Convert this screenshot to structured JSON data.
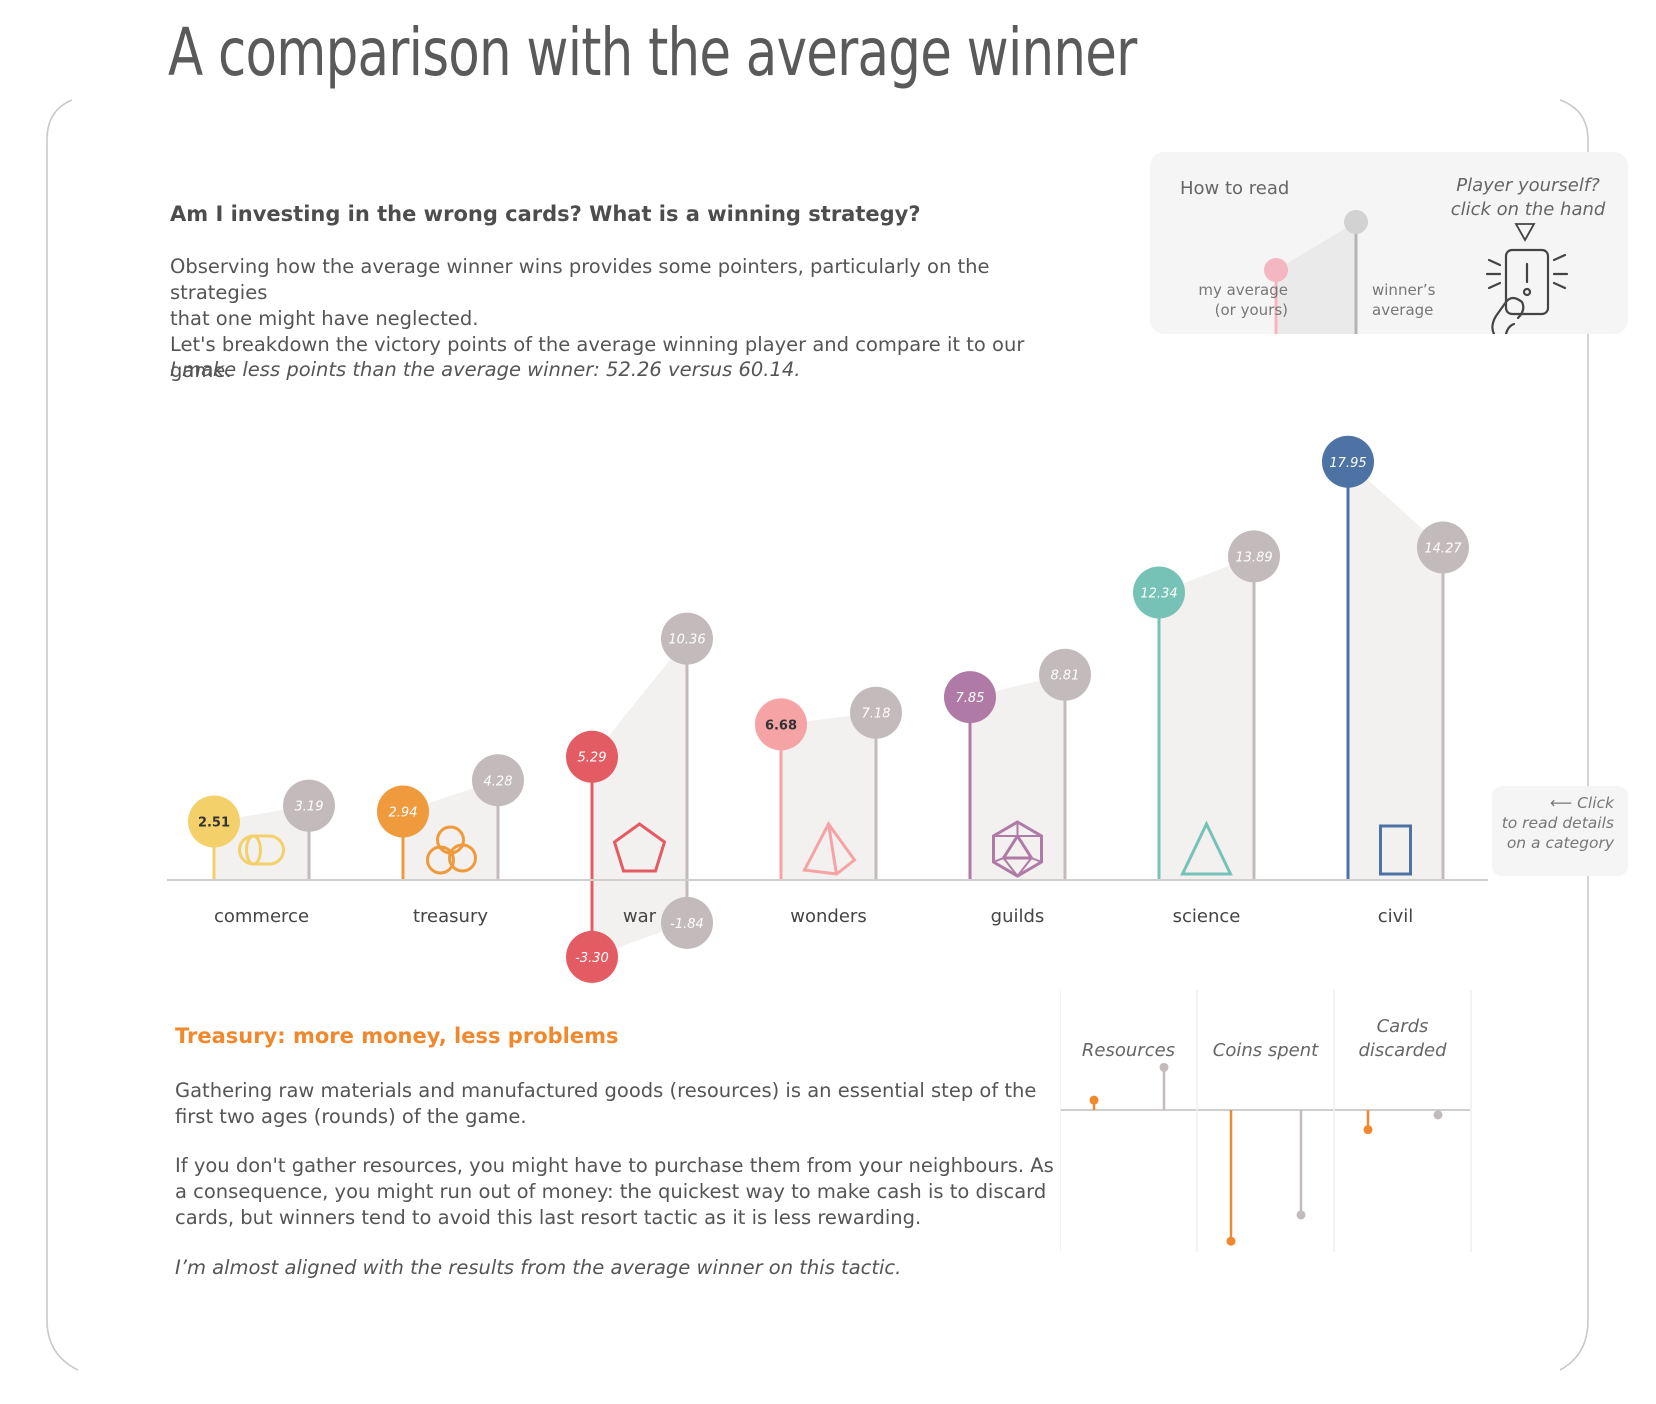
{
  "page": {
    "title": "A comparison with the average winner",
    "question": "Am I investing in the wrong cards? What is a winning strategy?",
    "intro": [
      "Observing how the average winner wins provides some pointers, particularly on the strategies",
      "that one might have neglected.",
      "Let's breakdown the victory points of the average winning player and compare it to our game."
    ],
    "conclusion": "I make less points than the average winner: 52.26 versus 60.14."
  },
  "howto": {
    "title": "How to read",
    "my_label_1": "my average",
    "my_label_2": "(or yours)",
    "winner_label_1": "winner’s",
    "winner_label_2": "average",
    "player_1": "Player yourself?",
    "player_2": "click on the hand",
    "icons": [
      "hand-phone-icon",
      "triangle-down-icon"
    ]
  },
  "click_hint": {
    "line1": "Click",
    "line2": "to read details",
    "line3": "on a category"
  },
  "colors": {
    "winner": "#c3bbbb",
    "axis": "#cfcfcf",
    "band": "#f2f1f0"
  },
  "chart_data": {
    "type": "lollipop",
    "title": "",
    "categories": [
      "commerce",
      "treasury",
      "war",
      "wonders",
      "guilds",
      "science",
      "civil"
    ],
    "series": [
      {
        "name": "my average",
        "values": [
          2.51,
          2.94,
          5.29,
          6.68,
          7.85,
          12.34,
          17.95
        ],
        "labels": [
          "2.51",
          "2.94",
          "5.29",
          "6.68",
          "7.85",
          "12.34",
          "17.95"
        ]
      },
      {
        "name": "winner's average",
        "values": [
          3.19,
          4.28,
          10.36,
          7.18,
          8.81,
          13.89,
          14.27
        ],
        "labels": [
          "3.19",
          "4.28",
          "10.36",
          "7.18",
          "8.81",
          "13.89",
          "14.27"
        ]
      }
    ],
    "negative_series": {
      "category": "war",
      "my": {
        "value": -3.3,
        "label": "-3.30"
      },
      "winner": {
        "value": -1.84,
        "label": "-1.84"
      }
    },
    "category_colors": [
      "#f3d06a",
      "#f09a3e",
      "#e45c63",
      "#f6a3a6",
      "#b07aa6",
      "#76c2b6",
      "#4d72a4"
    ],
    "category_icons": [
      "cylinder-icon",
      "coins-icon",
      "pentagon-icon",
      "pyramid-icon",
      "polyhedron-icon",
      "triangle-icon",
      "rectangle-icon"
    ],
    "ylim": [
      -3.3,
      17.95
    ]
  },
  "detail": {
    "title": "Treasury: more money, less problems",
    "paragraph1": "Gathering raw materials and manufactured goods (resources) is an essential step of the first two ages (rounds) of the game.",
    "paragraph2": "If you don't gather resources, you might have to purchase them from your neighbours. As a consequence, you might run out of money: the quickest way to make cash is to discard cards, but winners tend to avoid this last resort tactic as it is less rewarding.",
    "note": "I’m almost aligned with the results from the average winner on this tactic.",
    "accent": "#f0892e"
  },
  "mini_chart": {
    "type": "lollipop",
    "columns": [
      {
        "label1": "",
        "label2": "Resources",
        "my": 0.6,
        "winner": 2.6
      },
      {
        "label1": "",
        "label2": "Coins spent",
        "my": -8.0,
        "winner": -6.4
      },
      {
        "label1": "Cards",
        "label2": "discarded",
        "my": -1.2,
        "winner": -0.3
      }
    ],
    "ylim": [
      -8.0,
      3.0
    ]
  }
}
